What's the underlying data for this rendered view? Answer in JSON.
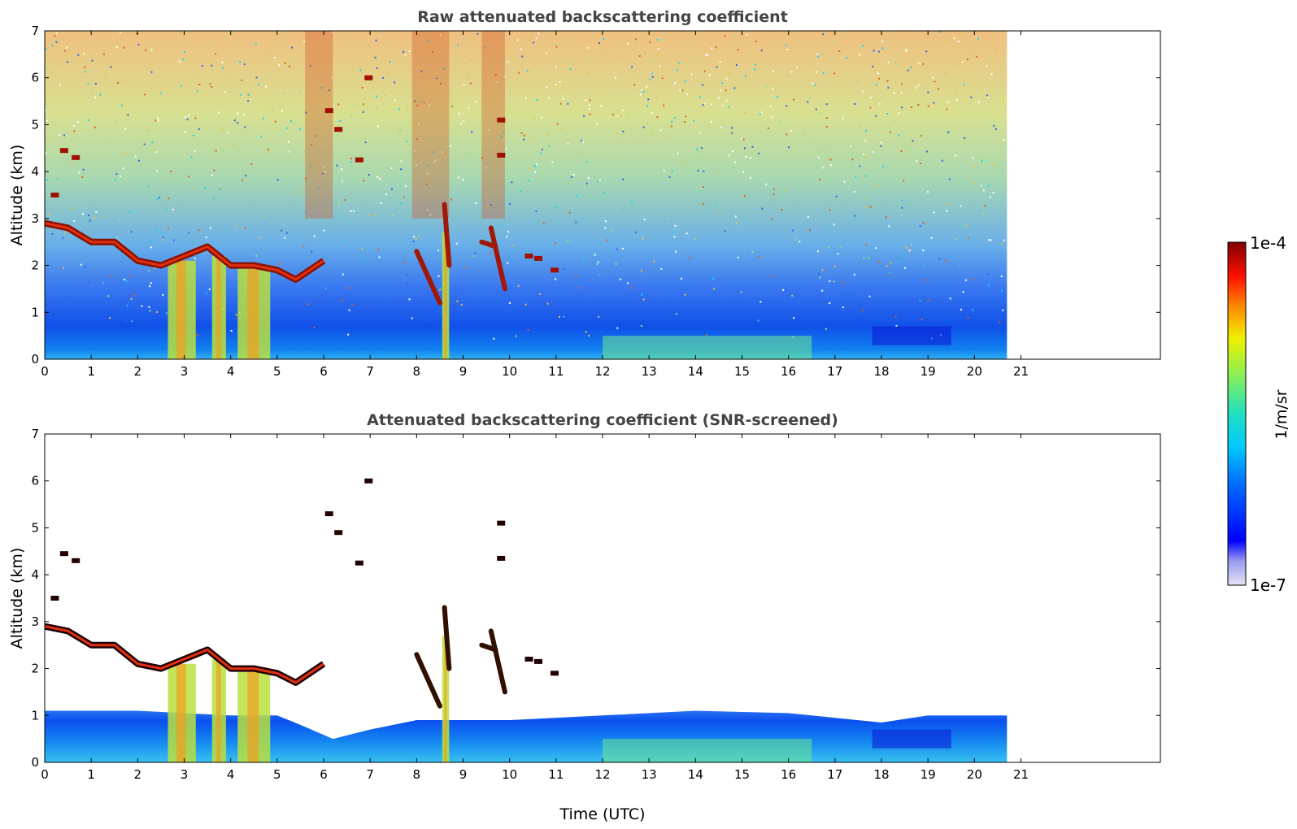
{
  "chart_data": [
    {
      "type": "heatmap",
      "title": "Raw attenuated backscattering coefficient",
      "xlabel": "",
      "ylabel": "Altitude (km)",
      "xlim": [
        0,
        24
      ],
      "ylim": [
        0,
        7
      ],
      "xticks": [
        0,
        1,
        2,
        3,
        4,
        5,
        6,
        7,
        8,
        9,
        10,
        11,
        12,
        13,
        14,
        15,
        16,
        17,
        18,
        19,
        20,
        21
      ],
      "yticks": [
        0,
        1,
        2,
        3,
        4,
        5,
        6,
        7
      ],
      "data_end_time": 20.7,
      "screened": false,
      "cloud_layer": [
        [
          0,
          2.9
        ],
        [
          0.5,
          2.8
        ],
        [
          1,
          2.5
        ],
        [
          1.5,
          2.5
        ],
        [
          2,
          2.1
        ],
        [
          2.5,
          2.0
        ],
        [
          3,
          2.2
        ],
        [
          3.5,
          2.4
        ],
        [
          4,
          2.0
        ],
        [
          4.5,
          2.0
        ],
        [
          5,
          1.9
        ],
        [
          5.4,
          1.7
        ],
        [
          6,
          2.1
        ]
      ]
    },
    {
      "type": "heatmap",
      "title": "Attenuated backscattering coefficient (SNR-screened)",
      "xlabel": "Time (UTC)",
      "ylabel": "Altitude (km)",
      "xlim": [
        0,
        24
      ],
      "ylim": [
        0,
        7
      ],
      "xticks": [
        0,
        1,
        2,
        3,
        4,
        5,
        6,
        7,
        8,
        9,
        10,
        11,
        12,
        13,
        14,
        15,
        16,
        17,
        18,
        19,
        20,
        21
      ],
      "yticks": [
        0,
        1,
        2,
        3,
        4,
        5,
        6,
        7
      ],
      "data_end_time": 20.7,
      "screened": true,
      "cloud_layer": [
        [
          0,
          2.9
        ],
        [
          0.5,
          2.8
        ],
        [
          1,
          2.5
        ],
        [
          1.5,
          2.5
        ],
        [
          2,
          2.1
        ],
        [
          2.5,
          2.0
        ],
        [
          3,
          2.2
        ],
        [
          3.5,
          2.4
        ],
        [
          4,
          2.0
        ],
        [
          4.5,
          2.0
        ],
        [
          5,
          1.9
        ],
        [
          5.4,
          1.7
        ],
        [
          6,
          2.1
        ]
      ]
    }
  ],
  "colorbar": {
    "label": "1/m/sr",
    "max_label": "1e-4",
    "min_label": "1e-7",
    "scale": "log",
    "colormap": "jet"
  }
}
